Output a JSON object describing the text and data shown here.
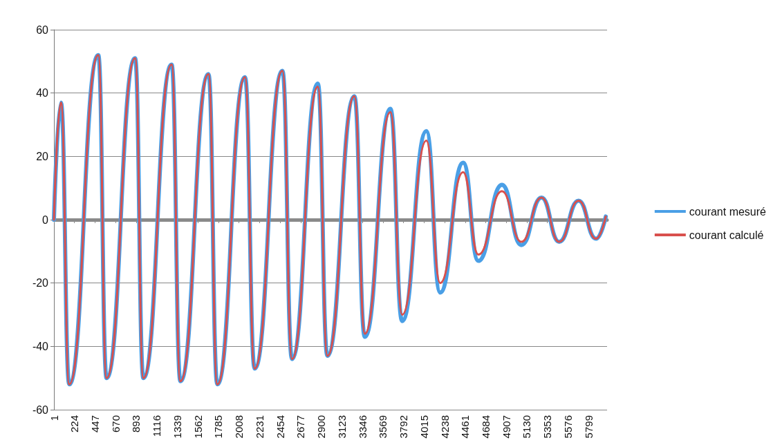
{
  "chart_data": {
    "type": "line",
    "x": [
      1,
      77,
      167,
      482,
      572,
      881,
      971,
      1277,
      1373,
      1677,
      1773,
      2073,
      2178,
      2479,
      2583,
      2863,
      2967,
      3259,
      3373,
      3650,
      3778,
      4040,
      4190,
      4439,
      4604,
      4860,
      5070,
      5289,
      5481,
      5691,
      5880,
      5986
    ],
    "series": [
      {
        "name": "courant mesuré",
        "color": "#4a9fe6",
        "values": [
          0,
          37,
          -52,
          52,
          -50,
          51,
          -50,
          49,
          -51,
          46,
          -52,
          45,
          -47,
          47,
          -44,
          43,
          -43,
          39,
          -37,
          35,
          -32,
          28,
          -23,
          18,
          -13,
          11,
          -8,
          7,
          -7,
          6,
          -6,
          1
        ]
      },
      {
        "name": "courant calculé",
        "color": "#d9504d",
        "values": [
          0,
          37,
          -52,
          52,
          -50,
          51,
          -50,
          49,
          -51,
          46,
          -52,
          45,
          -47,
          47,
          -44,
          42,
          -43,
          39,
          -36,
          34,
          -30,
          25,
          -20,
          15,
          -11,
          9,
          -7,
          7,
          -7,
          6,
          -6,
          1
        ]
      }
    ],
    "xlim": [
      1,
      6000
    ],
    "xticks": [
      1,
      224,
      447,
      670,
      893,
      1116,
      1339,
      1562,
      1785,
      2008,
      2231,
      2454,
      2677,
      2900,
      3123,
      3346,
      3569,
      3792,
      4015,
      4238,
      4461,
      4684,
      4907,
      5130,
      5353,
      5576,
      5799
    ],
    "ylim": [
      -60,
      60
    ],
    "yticks": [
      -60,
      -40,
      -20,
      0,
      20,
      40,
      60
    ],
    "grid": "y",
    "legend": "right",
    "line_style": "solid"
  }
}
